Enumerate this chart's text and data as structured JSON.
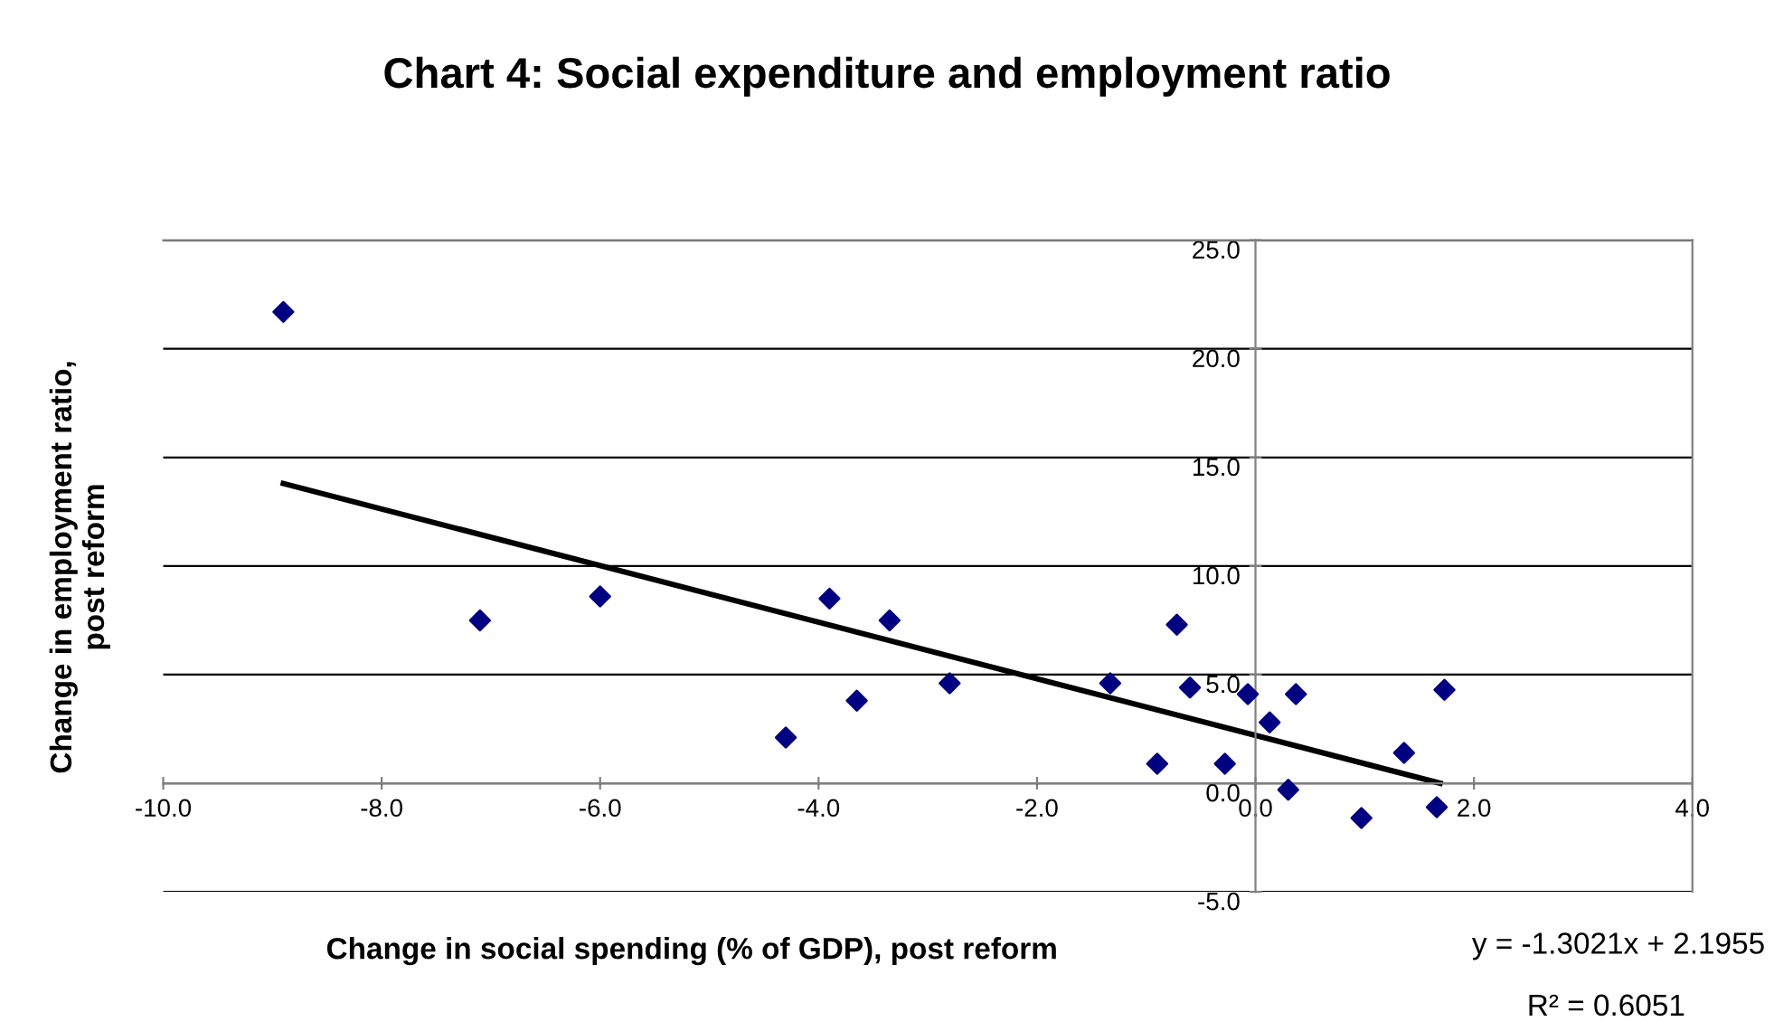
{
  "chart_data": {
    "type": "scatter",
    "title": "Chart 4: Social expenditure and employment ratio",
    "xlabel": "Change in social spending (% of GDP), post reform",
    "ylabel": "Change in employment ratio,\npost reform",
    "series": [
      {
        "color": "#000080",
        "marker": "diamond",
        "x": [
          -8.9,
          -7.1,
          -6.0,
          -4.3,
          -3.9,
          -3.65,
          -3.35,
          -2.8,
          -1.33,
          -0.9,
          -0.72,
          -0.6,
          -0.28,
          -0.07,
          0.13,
          0.3,
          0.37,
          0.97,
          1.36,
          1.66,
          1.73
        ],
        "values": [
          21.7,
          7.5,
          8.6,
          2.1,
          8.5,
          3.8,
          7.5,
          4.6,
          4.6,
          0.9,
          7.3,
          4.4,
          0.9,
          4.1,
          2.8,
          -0.3,
          4.1,
          -1.6,
          1.4,
          -1.1,
          4.3
        ]
      },
      {
        "type": "line",
        "color": "#000000",
        "line_style": "solid",
        "x": [
          -8.9,
          1.69
        ],
        "values": [
          13.8,
          0.0
        ]
      }
    ],
    "xlim": [
      -10,
      4
    ],
    "xticks": [
      {
        "value": -10,
        "label": "-10.0"
      },
      {
        "value": -8,
        "label": "-8.0"
      },
      {
        "value": -6,
        "label": "-6.0"
      },
      {
        "value": -4,
        "label": "-4.0"
      },
      {
        "value": -2,
        "label": "-2.0"
      },
      {
        "value": 0,
        "label": "0.0"
      },
      {
        "value": 2,
        "label": "2.0"
      },
      {
        "value": 4,
        "label": "4.0"
      }
    ],
    "ylim": [
      -5,
      25
    ],
    "yticks": [
      {
        "value": -5,
        "label": "-5.0"
      },
      {
        "value": 0,
        "label": "0.0"
      },
      {
        "value": 5,
        "label": "5.0"
      },
      {
        "value": 10,
        "label": "10.0"
      },
      {
        "value": 15,
        "label": "15.0"
      },
      {
        "value": 20,
        "label": "20.0"
      },
      {
        "value": 25,
        "label": "25.0"
      }
    ],
    "grid": "y",
    "annotations": [
      "y = -1.3021x + 2.1955",
      "R² = 0.6051"
    ]
  }
}
